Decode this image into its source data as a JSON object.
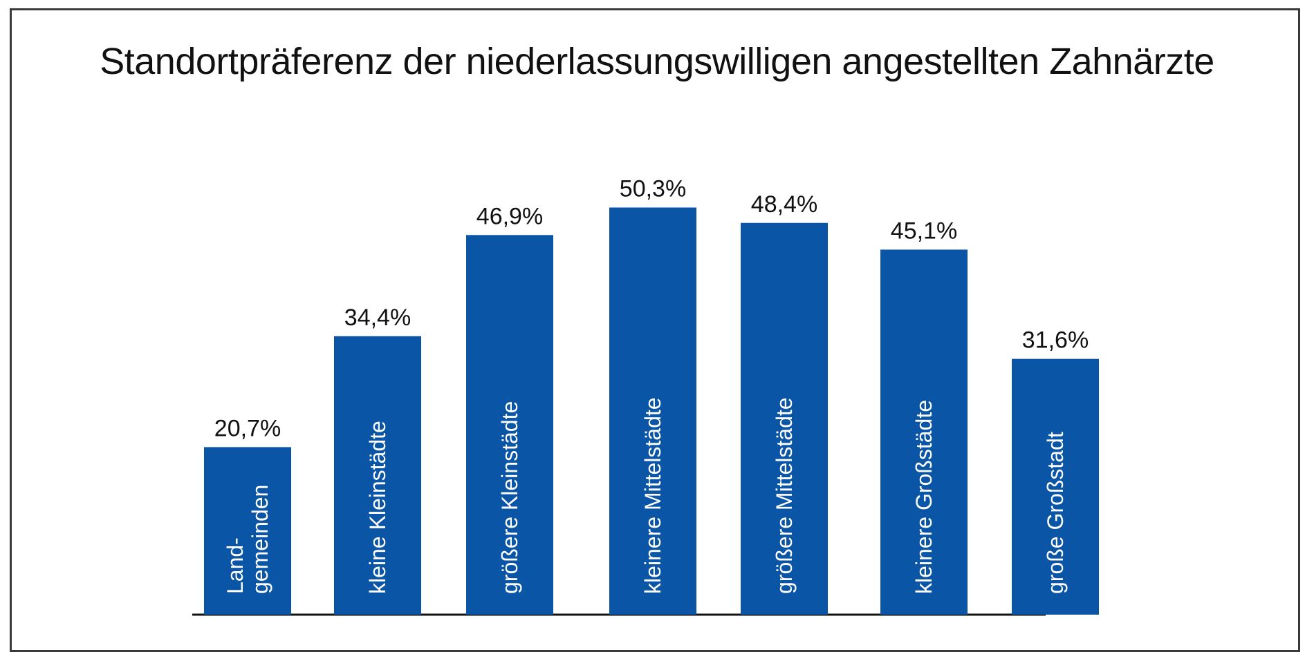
{
  "chart_data": {
    "type": "bar",
    "title": "Standortpräferenz der niederlassungswilligen angestellten Zahnärzte",
    "categories": [
      [
        "Land-",
        "gemeinden"
      ],
      [
        "kleine Kleinstädte"
      ],
      [
        "größere Kleinstädte"
      ],
      [
        "kleinere Mittelstädte"
      ],
      [
        "größere Mittelstädte"
      ],
      [
        "kleinere Großstädte"
      ],
      [
        "große Großstadt"
      ]
    ],
    "values": [
      20.7,
      34.4,
      46.9,
      50.3,
      48.4,
      45.1,
      31.6
    ],
    "value_labels": [
      "20,7%",
      "34,4%",
      "46,9%",
      "50,3%",
      "48,4%",
      "45,1%",
      "31,6%"
    ],
    "bar_color": "#0a55a6",
    "grid": false,
    "legend": "none",
    "category_label_placement": "inside-bar-rotated"
  }
}
